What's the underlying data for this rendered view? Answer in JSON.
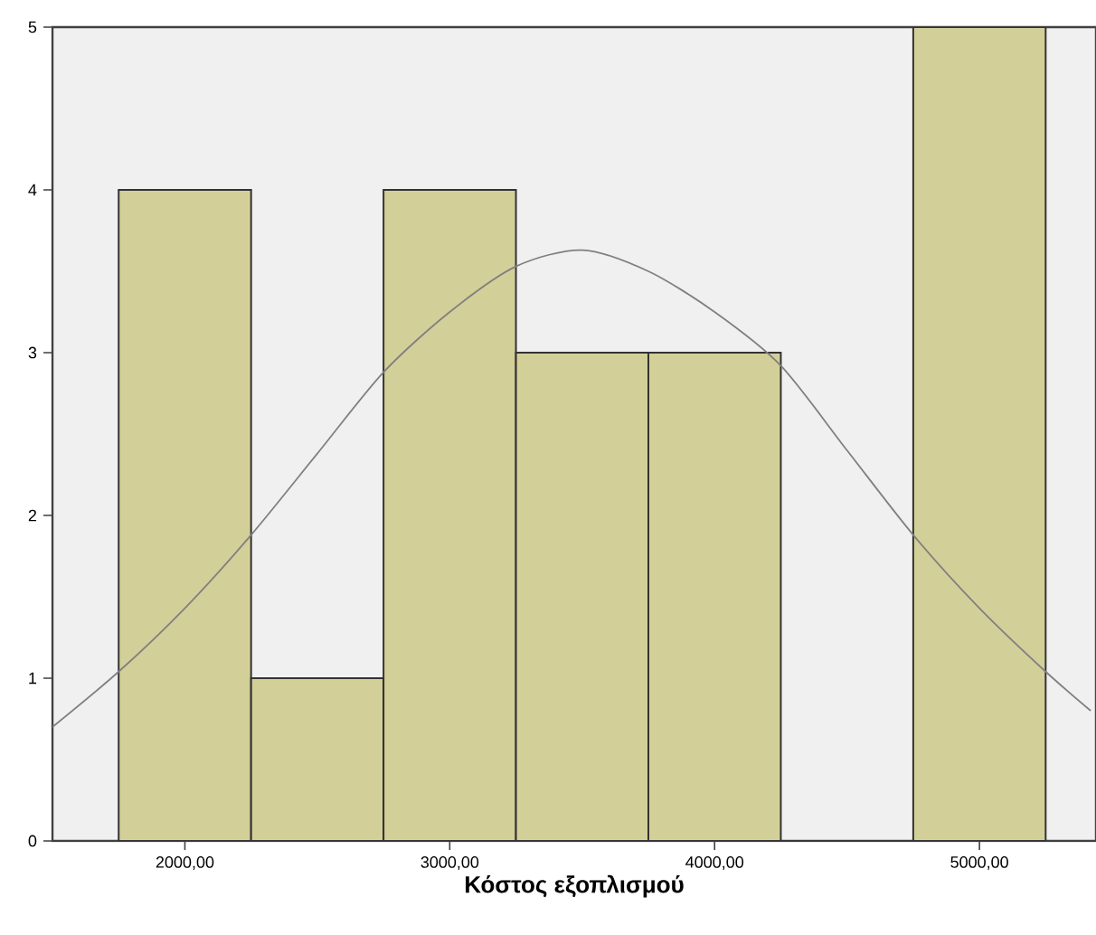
{
  "chart_data": {
    "type": "histogram",
    "xlabel": "Κόστος εξοπλισμού",
    "xlim": [
      1500,
      5440
    ],
    "ylim": [
      0,
      5
    ],
    "xticks": [
      {
        "value": 2000,
        "label": "2000,00"
      },
      {
        "value": 3000,
        "label": "3000,00"
      },
      {
        "value": 4000,
        "label": "4000,00"
      },
      {
        "value": 5000,
        "label": "5000,00"
      }
    ],
    "yticks": [
      0,
      1,
      2,
      3,
      4,
      5
    ],
    "grid": false,
    "series": [
      {
        "color": "#d3cf98",
        "bins": [
          1750,
          2250,
          2750,
          3250,
          3750,
          4250,
          4750,
          5250
        ],
        "values": [
          4,
          1,
          4,
          3,
          3,
          0,
          5
        ]
      },
      {
        "type": "line",
        "color": "#808080",
        "x": [
          1500,
          1750,
          2000,
          2250,
          2500,
          2750,
          3000,
          3250,
          3500,
          3750,
          4000,
          4250,
          4500,
          4750,
          5000,
          5250,
          5420
        ],
        "values": [
          0.7,
          1.04,
          1.43,
          1.88,
          2.38,
          2.88,
          3.25,
          3.53,
          3.63,
          3.5,
          3.25,
          2.92,
          2.4,
          1.88,
          1.43,
          1.04,
          0.8
        ]
      }
    ]
  }
}
